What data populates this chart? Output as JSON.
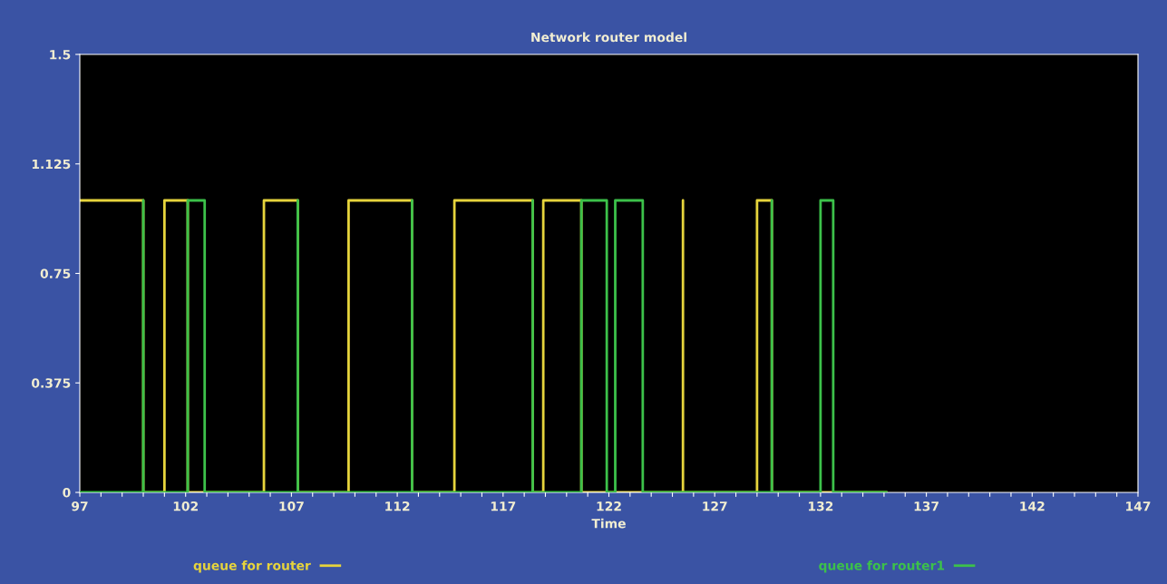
{
  "chart_data": {
    "type": "line",
    "title": "Network router model",
    "xlabel": "Time",
    "xlim": [
      97,
      147
    ],
    "ylim": [
      0,
      1.5
    ],
    "xticks": [
      97,
      {
        "value": 98,
        "label": null
      },
      {
        "value": 99,
        "label": null
      },
      {
        "value": 100,
        "label": null
      },
      {
        "value": 101,
        "label": null
      },
      102,
      {
        "value": 103,
        "label": null
      },
      {
        "value": 104,
        "label": null
      },
      {
        "value": 105,
        "label": null
      },
      {
        "value": 106,
        "label": null
      },
      107,
      {
        "value": 108,
        "label": null
      },
      {
        "value": 109,
        "label": null
      },
      {
        "value": 110,
        "label": null
      },
      {
        "value": 111,
        "label": null
      },
      112,
      {
        "value": 113,
        "label": null
      },
      {
        "value": 114,
        "label": null
      },
      {
        "value": 115,
        "label": null
      },
      {
        "value": 116,
        "label": null
      },
      117,
      {
        "value": 118,
        "label": null
      },
      {
        "value": 119,
        "label": null
      },
      {
        "value": 120,
        "label": null
      },
      {
        "value": 121,
        "label": null
      },
      122,
      {
        "value": 123,
        "label": null
      },
      {
        "value": 124,
        "label": null
      },
      {
        "value": 125,
        "label": null
      },
      {
        "value": 126,
        "label": null
      },
      127,
      {
        "value": 128,
        "label": null
      },
      {
        "value": 129,
        "label": null
      },
      {
        "value": 130,
        "label": null
      },
      {
        "value": 131,
        "label": null
      },
      132,
      {
        "value": 133,
        "label": null
      },
      {
        "value": 134,
        "label": null
      },
      {
        "value": 135,
        "label": null
      },
      {
        "value": 136,
        "label": null
      },
      137,
      {
        "value": 138,
        "label": null
      },
      {
        "value": 139,
        "label": null
      },
      {
        "value": 140,
        "label": null
      },
      {
        "value": 141,
        "label": null
      },
      142,
      {
        "value": 143,
        "label": null
      },
      {
        "value": 144,
        "label": null
      },
      {
        "value": 145,
        "label": null
      },
      {
        "value": 146,
        "label": null
      },
      147
    ],
    "yticks": [
      0,
      0.375,
      0.75,
      1.125,
      1.5
    ],
    "grid": false,
    "legend": "bottom",
    "marker": "none",
    "line_style": "solid",
    "series": [
      {
        "name": "queue for router",
        "color": "#e6d43c",
        "x": [
          97,
          100.0,
          100.0,
          101.0,
          101.0,
          102.1,
          102.1,
          105.7,
          105.7,
          107.3,
          107.3,
          109.7,
          109.7,
          112.7,
          112.7,
          114.7,
          114.7,
          118.4,
          118.4,
          118.9,
          118.9,
          120.7,
          120.7,
          125.5,
          125.5,
          125.5,
          129.0,
          129.0,
          129.7,
          129.7,
          135.1
        ],
        "values": [
          1,
          1,
          0,
          0,
          1,
          1,
          0,
          0,
          1,
          1,
          0,
          0,
          1,
          1,
          0,
          0,
          1,
          1,
          0,
          0,
          1,
          1,
          0,
          0,
          1,
          0,
          0,
          1,
          1,
          0,
          0
        ]
      },
      {
        "name": "queue for router1",
        "color": "#3cc14a",
        "x": [
          97,
          100.0,
          100.0,
          100.0,
          102.1,
          102.1,
          102.9,
          102.9,
          107.3,
          107.3,
          107.3,
          112.7,
          112.7,
          112.7,
          118.4,
          118.4,
          118.4,
          120.7,
          120.7,
          121.9,
          121.9,
          122.3,
          122.3,
          123.6,
          123.6,
          129.7,
          129.7,
          129.7,
          132.0,
          132.0,
          132.6,
          132.6,
          135.1
        ],
        "values": [
          0,
          0,
          1,
          0,
          0,
          1,
          1,
          0,
          0,
          1,
          0,
          0,
          1,
          0,
          0,
          1,
          0,
          0,
          1,
          1,
          0,
          0,
          1,
          1,
          0,
          0,
          1,
          0,
          0,
          1,
          1,
          0,
          0
        ]
      }
    ]
  }
}
